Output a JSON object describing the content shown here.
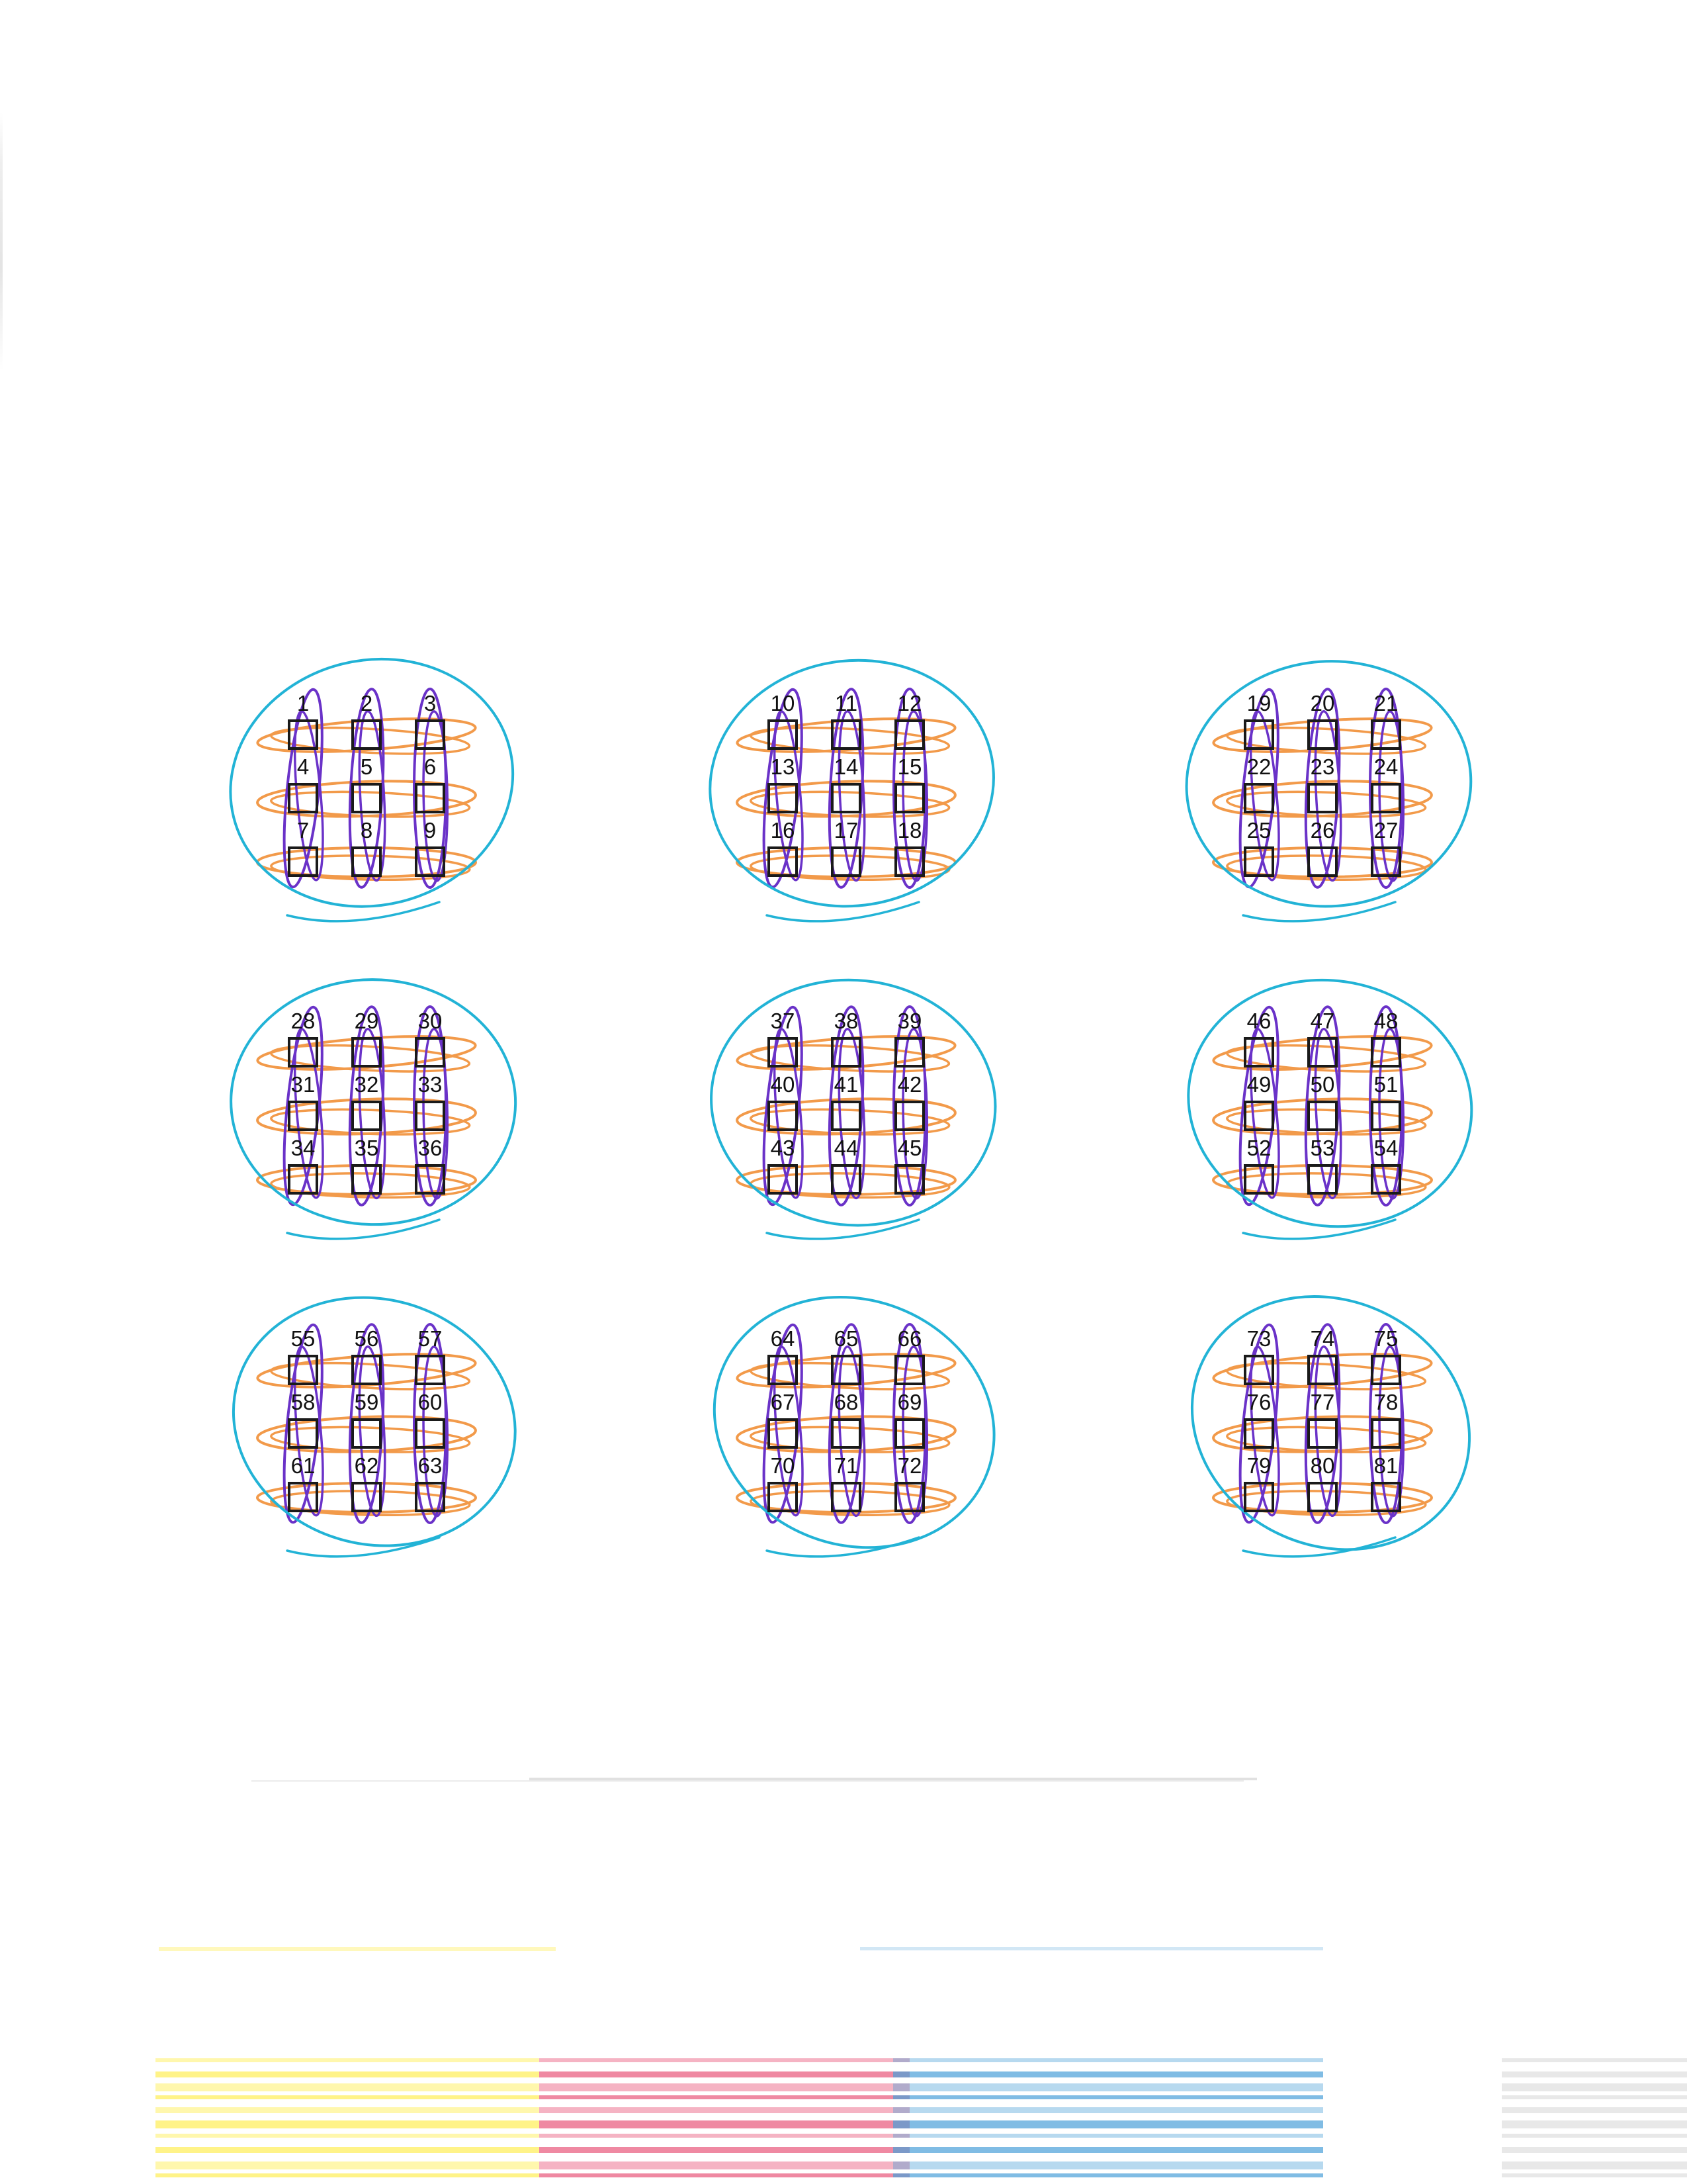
{
  "page": {
    "checkbox_labels": [
      "1",
      "2",
      "3",
      "4",
      "5",
      "6",
      "7",
      "8",
      "9",
      "10",
      "11",
      "12",
      "13",
      "14",
      "15",
      "16",
      "17",
      "18",
      "19",
      "20",
      "21",
      "22",
      "23",
      "24",
      "25",
      "26",
      "27",
      "28",
      "29",
      "30",
      "31",
      "32",
      "33",
      "34",
      "35",
      "36",
      "37",
      "38",
      "39",
      "40",
      "41",
      "42",
      "43",
      "44",
      "45",
      "46",
      "47",
      "48",
      "49",
      "50",
      "51",
      "52",
      "53",
      "54",
      "55",
      "56",
      "57",
      "58",
      "59",
      "60",
      "61",
      "62",
      "63",
      "64",
      "65",
      "66",
      "67",
      "68",
      "69",
      "70",
      "71",
      "72",
      "73",
      "74",
      "75",
      "76",
      "77",
      "78",
      "79",
      "80",
      "81"
    ]
  },
  "colors": {
    "ink_cyan": "#22b3d6",
    "ink_orange": "#f29a4a",
    "ink_purple": "#6a32c8",
    "box_border": "#1a1a1a",
    "band_yellow": "#fff06a",
    "band_magenta": "#e8577a",
    "band_blue": "#4aa0d8"
  }
}
